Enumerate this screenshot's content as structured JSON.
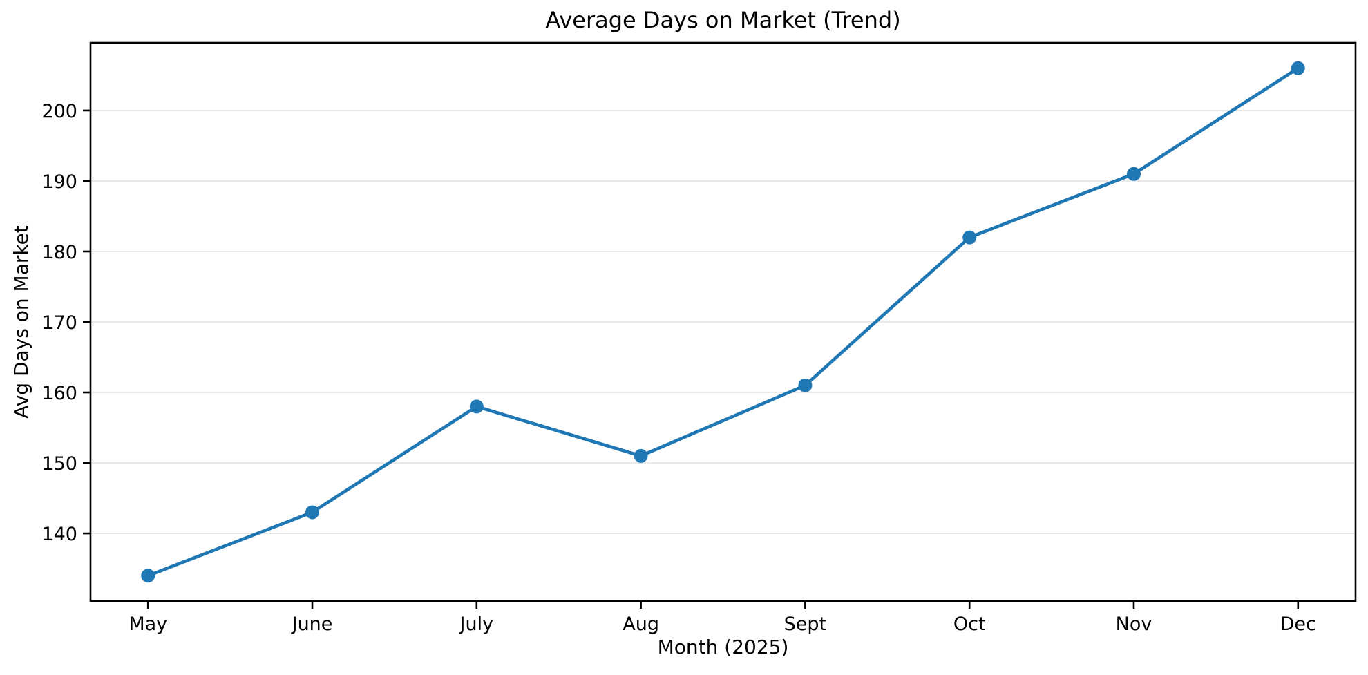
{
  "figure": {
    "background": "#ffffff"
  },
  "chart_data": {
    "type": "line",
    "title": "Average Days on Market (Trend)",
    "xlabel": "Month (2025)",
    "ylabel": "Avg Days on Market",
    "categories": [
      "May",
      "June",
      "July",
      "Aug",
      "Sept",
      "Oct",
      "Nov",
      "Dec"
    ],
    "series": [
      {
        "name": "Avg Days on Market",
        "values": [
          134,
          143,
          158,
          151,
          161,
          182,
          191,
          206
        ],
        "color": "#1f77b4",
        "marker": "circle"
      }
    ],
    "yticks": [
      140,
      150,
      160,
      170,
      180,
      190,
      200
    ],
    "ylim": [
      130.4,
      209.6
    ],
    "xlim": [
      -0.35,
      7.35
    ],
    "grid": "horizontal-only",
    "grid_color": "#e7e7e7",
    "axis_color": "#000000",
    "legend_position": "none"
  }
}
